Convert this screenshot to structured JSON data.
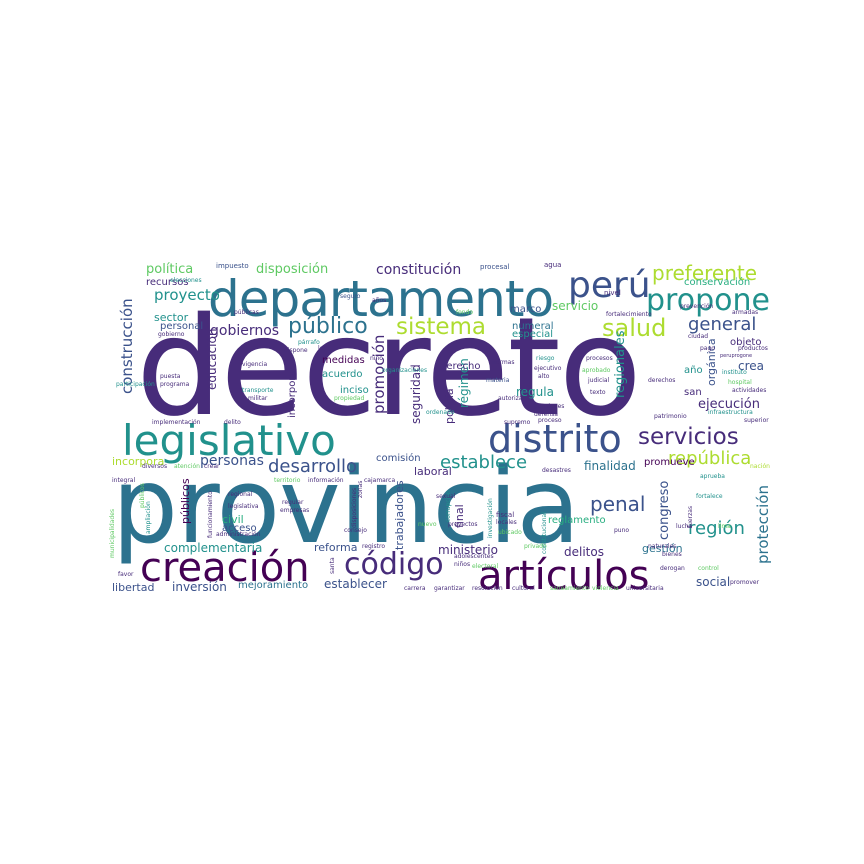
{
  "palette": {
    "dark_purple": "#440154",
    "indigo": "#472c7a",
    "blue": "#3b528b",
    "teal_blue": "#2c728e",
    "teal": "#21918c",
    "green_teal": "#28ae80",
    "green": "#5ec962",
    "lime": "#addc30",
    "yellow": "#fde725"
  },
  "words": {
    "decreto": "decreto",
    "provincia": "provincia",
    "departamento": "departamento",
    "legislativo": "legislativo",
    "distrito": "distrito",
    "creacion": "creación",
    "articulos": "artículos",
    "codigo": "código",
    "peru": "perú",
    "propone": "propone",
    "preferente": "preferente",
    "sistema": "sistema",
    "salud": "salud",
    "servicios": "servicios",
    "publico": "público",
    "general": "general",
    "establece": "establece",
    "republica": "república",
    "desarrollo": "desarrollo",
    "personas": "personas",
    "penal": "penal",
    "region": "región",
    "politica": "política",
    "proyecto": "proyecto",
    "constitucion": "constitución",
    "disposicion": "disposición",
    "construccion": "construcción",
    "gobiernos": "gobiernos",
    "complementaria": "complementaria",
    "creacion_small": "creación",
    "inversion": "inversión",
    "mejoramiento": "mejoramiento",
    "libertad": "libertad",
    "establecer": "establecer",
    "ministerio": "ministerio",
    "reforma": "reforma",
    "delitos": "delitos",
    "social": "social",
    "proteccion": "protección",
    "promocion": "promoción",
    "seguridad": "seguridad",
    "educacion": "educación",
    "regionales": "regionales",
    "ejecucion": "ejecución",
    "finalidad": "finalidad",
    "congreso": "congreso",
    "reglamento": "reglamento",
    "gestion": "gestión",
    "promueve": "promueve",
    "crea": "crea",
    "organica": "orgánica",
    "servicio": "servicio",
    "conservacion": "conservación",
    "recursos": "recursos",
    "sector": "sector",
    "personal": "personal",
    "numeral": "numeral",
    "especial": "especial",
    "regula": "regula",
    "regimen": "régimen",
    "policia": "policía",
    "final": "final",
    "trabajadores": "trabajadores",
    "incorpora": "incorpora",
    "acuerdo": "acuerdo",
    "derecho": "derecho",
    "inciso": "inciso",
    "medidas": "medidas",
    "incorporar": "incorporar",
    "comision": "comisión",
    "laboral": "laboral",
    "publicos": "públicos",
    "civil": "civil",
    "acceso": "acceso",
    "ano": "año",
    "san": "san",
    "objeto": "objeto",
    "marco": "marco",
    "impuesto": "impuesto",
    "procesal": "procesal",
    "agua": "agua",
    "nivel": "nivel",
    "fondo": "fondo",
    "seguro": "seguro",
    "publicas": "públicas",
    "gobierno": "gobierno",
    "parrafo": "párrafo",
    "dispone": "dispone",
    "vigencia": "vigencia",
    "puesta": "puesta",
    "programa": "programa",
    "participacion": "participación",
    "transporte": "transporte",
    "militar": "militar",
    "delito": "delito",
    "implementacion": "implementación",
    "organizaciones": "organizaciones",
    "propiedad": "propiedad",
    "normas": "normas",
    "riesgo": "riesgo",
    "ejecutivo": "ejecutivo",
    "alto": "alto",
    "autoriza": "autoriza",
    "materia": "materia",
    "procesos": "procesos",
    "judicial": "judicial",
    "aprobado": "aprobado",
    "texto": "texto",
    "pensiones": "pensiones",
    "defensa": "defensa",
    "proceso": "proceso",
    "supremo": "supremo",
    "ordenado": "ordenado",
    "ciudad": "ciudad",
    "pago": "pago",
    "peruprogone": "peruprogone",
    "derechos": "derechos",
    "instituto": "instituto",
    "hospital": "hospital",
    "actividades": "actividades",
    "productos": "productos",
    "infraestructura": "infraestructura",
    "superior": "superior",
    "patrimonio": "patrimonio",
    "prevencion": "prevención",
    "fortalecimiento": "fortalecimiento",
    "armadas": "armadas",
    "nacion": "nación",
    "aprueba": "aprueba",
    "fortalece": "fortalece",
    "fuerzas": "fuerzas",
    "lucha": "lucha",
    "naturales": "naturales",
    "bienes": "bienes",
    "derogan": "derogan",
    "control": "control",
    "promover": "promover",
    "universitaria": "universitaria",
    "violencia": "violencia",
    "saneamiento": "saneamiento",
    "cultural": "cultural",
    "resolucion": "resolución",
    "garantizar": "garantizar",
    "carrera": "carrera",
    "adolescentes": "adolescentes",
    "ninos": "niños",
    "desastres": "desastres",
    "privado": "privado",
    "electoral": "electoral",
    "puno": "puno",
    "constitucional": "constitucional",
    "ubicado": "ubicado",
    "locales": "locales",
    "fiscal": "fiscal",
    "investigacion": "investigación",
    "proyectos": "proyectos",
    "corrupcion": "corrupción",
    "sexual": "sexual",
    "lima": "lima",
    "registro": "registro",
    "consejo": "consejo",
    "zonas": "zonas",
    "disposiciones": "disposiciones",
    "regular": "regular",
    "empresas": "empresas",
    "legislativa": "legislativa",
    "regional": "regional",
    "administracion": "administración",
    "funcionamiento": "funcionamiento",
    "municipalidades": "municipalidades",
    "favor": "favor",
    "integral": "integral",
    "diversos": "diversos",
    "crear": "crear",
    "atencion": "atención",
    "elecciones": "elecciones",
    "ampliacion": "ampliación",
    "informacion": "información",
    "cajamarca": "cajamarca",
    "santa": "santa",
    "territorio": "territorio",
    "anos": "años",
    "nino": "niño",
    "ley": "ley",
    "gobiernos_small": "gobiernos",
    "nuevo": "nuevo",
    "electoral2": "electoral",
    "publicos_small": "públicos"
  }
}
